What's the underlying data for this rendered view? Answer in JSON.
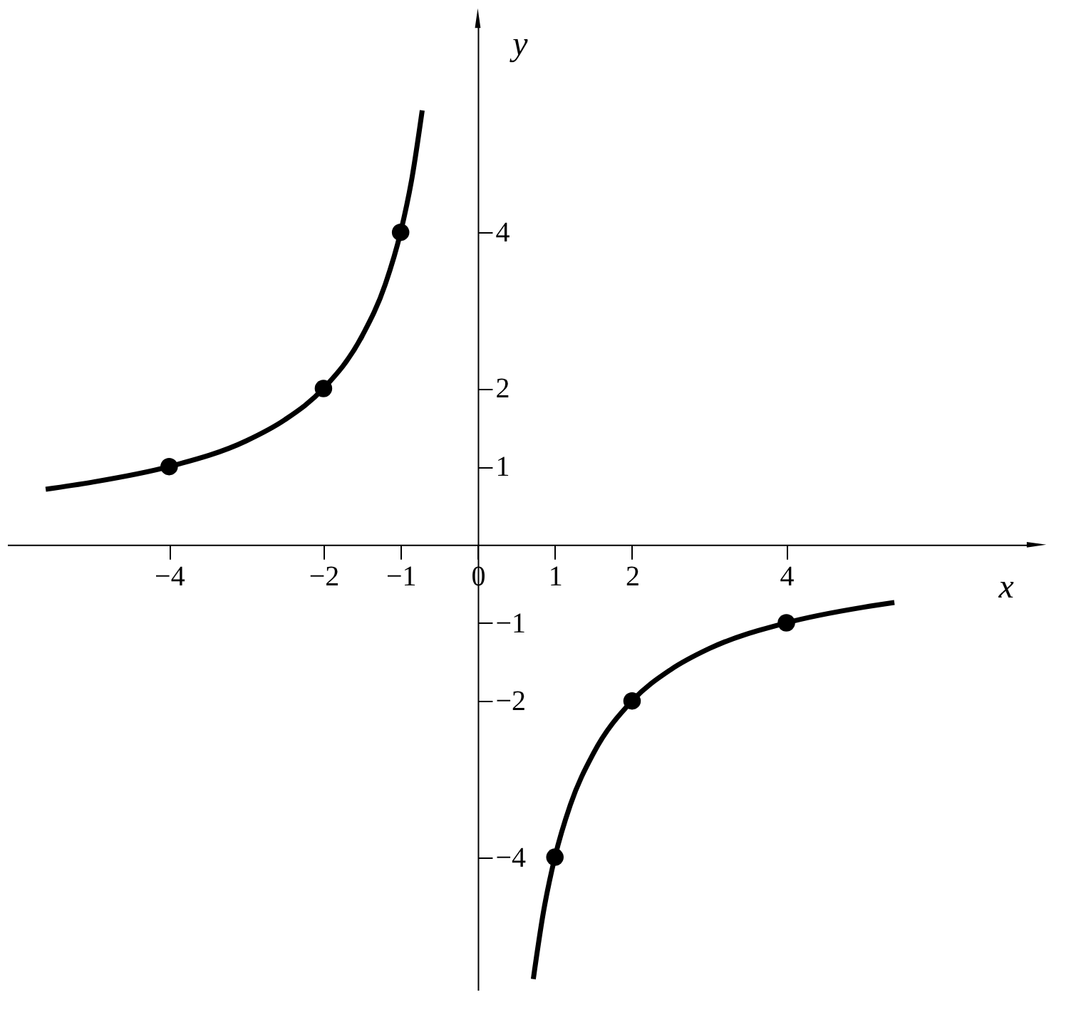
{
  "chart_data": {
    "type": "line",
    "xlabel": "x",
    "ylabel": "y",
    "xlim": [
      -6.1,
      7.2
    ],
    "ylim": [
      -5.7,
      6.7
    ],
    "xticks": [
      -4,
      -2,
      -1,
      0,
      1,
      2,
      4
    ],
    "yticks": [
      -4,
      -2,
      -1,
      1,
      2,
      4
    ],
    "grid": false,
    "line_style": "solid",
    "series": [
      {
        "type": "line",
        "color": "#000000",
        "x": [
          -5.6,
          -5,
          -4,
          -3,
          -2.5,
          -2,
          -1.5,
          -1.2,
          -1,
          -0.85,
          -0.72
        ],
        "values": [
          0.71,
          0.8,
          1,
          1.33,
          1.6,
          2,
          2.67,
          3.33,
          4,
          4.71,
          5.56
        ]
      },
      {
        "type": "line",
        "color": "#000000",
        "x": [
          0.72,
          0.85,
          1,
          1.2,
          1.5,
          2,
          2.5,
          3,
          4,
          5,
          5.4
        ],
        "values": [
          -5.56,
          -4.71,
          -4,
          -3.33,
          -2.67,
          -2,
          -1.6,
          -1.33,
          -1,
          -0.8,
          -0.74
        ]
      },
      {
        "type": "scatter",
        "marker": "circle",
        "color": "#000000",
        "x": [
          -4,
          -2,
          -1,
          1,
          2,
          4
        ],
        "values": [
          1,
          2,
          4,
          -4,
          -2,
          -1
        ]
      }
    ]
  }
}
